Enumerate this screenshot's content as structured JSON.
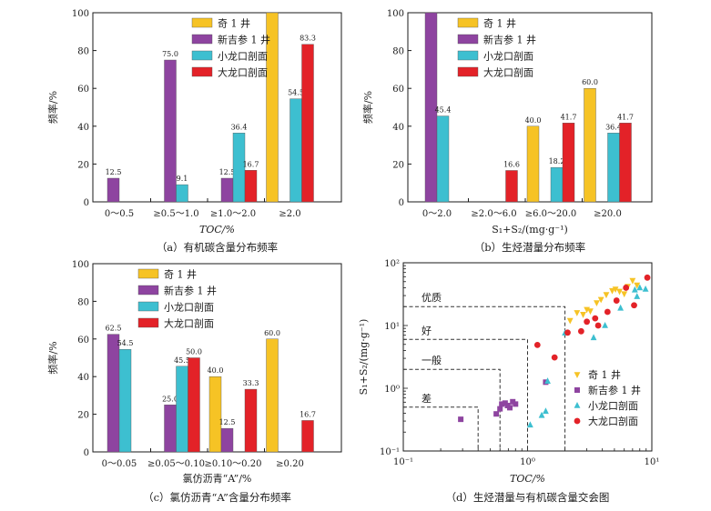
{
  "colors": {
    "奇1井": "#f6c325",
    "新吉参1井": "#8e44a0",
    "小龙口剖面": "#3dbfd0",
    "大龙口剖面": "#e32228",
    "axis": "#1a1a1a",
    "dash": "#333333"
  },
  "chart_data": [
    {
      "id": "a",
      "type": "bar",
      "caption": "（a）有机碳含量分布频率",
      "xlabel": "TOC/%",
      "ylabel": "频率/%",
      "ylim": [
        0,
        100
      ],
      "yticks": [
        "0",
        "20",
        "40",
        "60",
        "80",
        "100"
      ],
      "categories": [
        "0～0.5",
        "≥0.5～1.0",
        "≥1.0～2.0",
        "≥2.0"
      ],
      "legend_position": "top-right",
      "series": [
        {
          "name": "奇 1 井",
          "values": [
            null,
            null,
            null,
            100
          ],
          "labels": [
            "",
            "",
            "",
            ""
          ]
        },
        {
          "name": "新吉参 1 井",
          "values": [
            12.5,
            75.0,
            12.5,
            null
          ],
          "labels": [
            "12.5",
            "75.0",
            "12.5",
            ""
          ]
        },
        {
          "name": "小龙口剖面",
          "values": [
            null,
            9.1,
            36.4,
            54.5
          ],
          "labels": [
            "",
            "9.1",
            "36.4",
            "54.5"
          ]
        },
        {
          "name": "大龙口剖面",
          "values": [
            null,
            null,
            16.7,
            83.3
          ],
          "labels": [
            "",
            "",
            "16.7",
            "83.3"
          ]
        }
      ]
    },
    {
      "id": "b",
      "type": "bar",
      "caption": "（b）生烃潜量分布频率",
      "xlabel": "S₁+S₂/(mg·g⁻¹)",
      "ylabel": "频率/%",
      "ylim": [
        0,
        100
      ],
      "yticks": [
        "0",
        "20",
        "40",
        "60",
        "80",
        "100"
      ],
      "categories": [
        "0～2.0",
        "≥2.0～6.0",
        "≥6.0～20.0",
        "≥20.0"
      ],
      "legend_position": "top-right",
      "series": [
        {
          "name": "奇 1 井",
          "values": [
            null,
            null,
            40.0,
            60.0
          ],
          "labels": [
            "",
            "",
            "40.0",
            "60.0"
          ]
        },
        {
          "name": "新吉参 1 井",
          "values": [
            100,
            null,
            null,
            null
          ],
          "labels": [
            "",
            "",
            "",
            ""
          ]
        },
        {
          "name": "小龙口剖面",
          "values": [
            45.4,
            null,
            18.2,
            36.4
          ],
          "labels": [
            "45.4",
            "",
            "18.2",
            "36.4"
          ]
        },
        {
          "name": "大龙口剖面",
          "values": [
            null,
            16.6,
            41.7,
            41.7
          ],
          "labels": [
            "",
            "16.6",
            "41.7",
            "41.7"
          ]
        }
      ]
    },
    {
      "id": "c",
      "type": "bar",
      "caption": "（c）氯仿沥青“A”含量分布频率",
      "xlabel": "氯仿沥青“A”/%",
      "ylabel": "频率/%",
      "ylim": [
        0,
        100
      ],
      "yticks": [
        "0",
        "20",
        "40",
        "60",
        "80",
        "100"
      ],
      "categories": [
        "0～0.05",
        "≥0.05～0.10",
        "≥0.10～0.20",
        "≥0.20"
      ],
      "legend_position": "top-right",
      "series": [
        {
          "name": "奇 1 井",
          "values": [
            null,
            null,
            40.0,
            60.0
          ],
          "labels": [
            "",
            "",
            "40.0",
            "60.0"
          ]
        },
        {
          "name": "新吉参 1 井",
          "values": [
            62.5,
            25.0,
            12.5,
            null
          ],
          "labels": [
            "62.5",
            "25.0",
            "12.5",
            ""
          ]
        },
        {
          "name": "小龙口剖面",
          "values": [
            54.5,
            45.5,
            null,
            null
          ],
          "labels": [
            "54.5",
            "45.5",
            "",
            ""
          ]
        },
        {
          "name": "大龙口剖面",
          "values": [
            null,
            50.0,
            33.3,
            16.7
          ],
          "labels": [
            "",
            "50.0",
            "33.3",
            "16.7"
          ]
        }
      ]
    },
    {
      "id": "d",
      "type": "scatter",
      "caption": "（d）生烃潜量与有机碳含量交会图",
      "xlabel": "TOC/%",
      "ylabel": "S₁+S₂/(mg·g⁻¹)",
      "xscale": "log",
      "yscale": "log",
      "xlim": [
        0.1,
        10
      ],
      "ylim": [
        0.1,
        100
      ],
      "xticks": [
        "10⁻¹",
        "10⁰",
        "10¹"
      ],
      "yticks": [
        "10⁻¹",
        "10⁰",
        "10¹",
        "10²"
      ],
      "legend_position": "bottom-right",
      "zones": [
        {
          "label": "优质",
          "toc": 2.0,
          "s": 20
        },
        {
          "label": "好",
          "toc": 1.0,
          "s": 6
        },
        {
          "label": "一般",
          "toc": 0.6,
          "s": 2
        },
        {
          "label": "差",
          "toc": 0.4,
          "s": 0.5
        }
      ],
      "series": [
        {
          "name": "奇 1 井",
          "marker": "triangle-down",
          "points": [
            [
              2.2,
              12
            ],
            [
              2.5,
              16
            ],
            [
              2.8,
              15
            ],
            [
              3.0,
              18
            ],
            [
              3.2,
              17
            ],
            [
              3.6,
              23
            ],
            [
              3.9,
              26
            ],
            [
              4.3,
              31
            ],
            [
              4.8,
              36
            ],
            [
              5.1,
              38
            ],
            [
              5.5,
              35
            ],
            [
              6.0,
              32
            ],
            [
              6.4,
              42
            ],
            [
              7.0,
              52
            ],
            [
              7.6,
              44
            ]
          ]
        },
        {
          "name": "新吉参 1 井",
          "marker": "square",
          "points": [
            [
              0.29,
              0.32
            ],
            [
              0.56,
              0.39
            ],
            [
              0.6,
              0.47
            ],
            [
              0.62,
              0.56
            ],
            [
              0.66,
              0.58
            ],
            [
              0.69,
              0.53
            ],
            [
              0.72,
              0.49
            ],
            [
              0.76,
              0.61
            ],
            [
              0.8,
              0.56
            ],
            [
              1.4,
              1.25
            ]
          ]
        },
        {
          "name": "小龙口剖面",
          "marker": "triangle-up",
          "points": [
            [
              1.05,
              0.26
            ],
            [
              1.3,
              0.37
            ],
            [
              1.4,
              0.43
            ],
            [
              2.0,
              7.6
            ],
            [
              3.4,
              6.4
            ],
            [
              4.2,
              10.0
            ],
            [
              5.6,
              19.0
            ],
            [
              7.6,
              29.0
            ],
            [
              7.3,
              37.0
            ],
            [
              8.0,
              40.0
            ],
            [
              8.9,
              38.0
            ],
            [
              1.45,
              1.3
            ]
          ]
        },
        {
          "name": "大龙口剖面",
          "marker": "circle",
          "points": [
            [
              1.2,
              4.9
            ],
            [
              1.65,
              3.1
            ],
            [
              2.1,
              7.7
            ],
            [
              2.7,
              8.1
            ],
            [
              3.0,
              11.5
            ],
            [
              3.5,
              13.0
            ],
            [
              3.7,
              10.0
            ],
            [
              4.4,
              16.5
            ],
            [
              5.2,
              25.0
            ],
            [
              6.2,
              40.0
            ],
            [
              7.2,
              21.0
            ],
            [
              9.2,
              58.0
            ]
          ]
        }
      ]
    }
  ]
}
